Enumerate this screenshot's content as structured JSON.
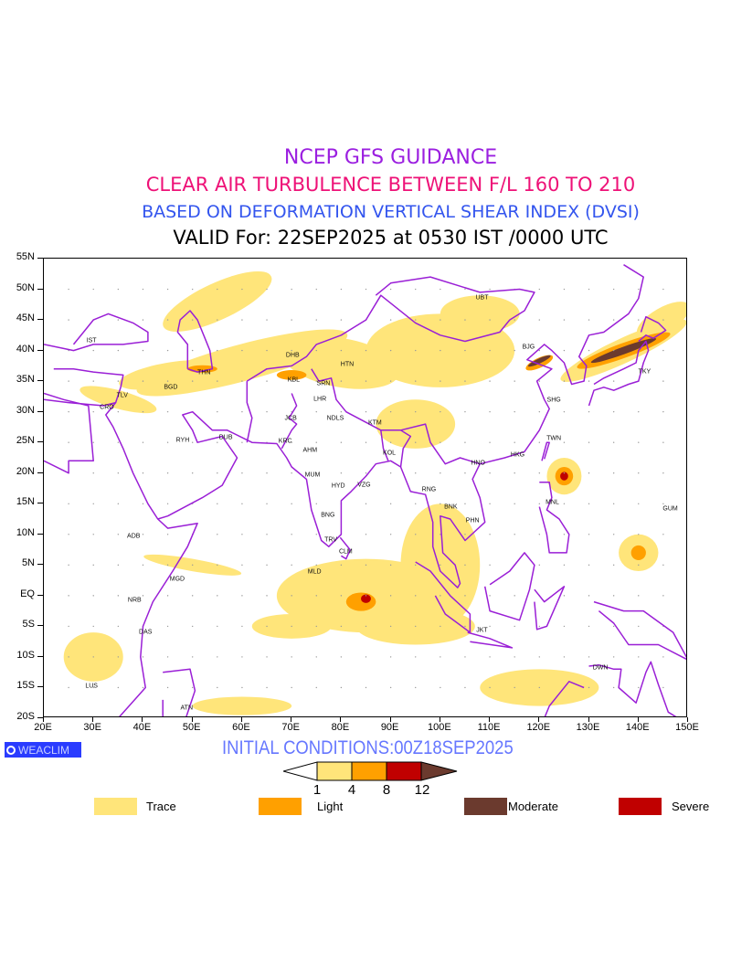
{
  "titles": {
    "line1": "NCEP GFS GUIDANCE",
    "line2": "CLEAR AIR TURBULENCE BETWEEN F/L 160 TO 210",
    "line3": "BASED ON DEFORMATION VERTICAL SHEAR INDEX (DVSI)",
    "line4": "VALID For: 22SEP2025 at 0530 IST /0000 UTC"
  },
  "colors": {
    "line1": "#9b1fe0",
    "line2": "#ee1177",
    "line3": "#3355ee",
    "coast": "#9a1fd6",
    "trace": "#ffe57a",
    "light": "#ffa000",
    "severe": "#c00000",
    "moderate": "#6b3a2e"
  },
  "axes": {
    "lat_labels": [
      "55N",
      "50N",
      "45N",
      "40N",
      "35N",
      "30N",
      "25N",
      "20N",
      "15N",
      "10N",
      "5N",
      "EQ",
      "5S",
      "10S",
      "15S",
      "20S"
    ],
    "lon_labels": [
      "20E",
      "30E",
      "40E",
      "50E",
      "60E",
      "70E",
      "80E",
      "90E",
      "100E",
      "110E",
      "120E",
      "130E",
      "140E",
      "150E"
    ],
    "lon_range": [
      20,
      150
    ],
    "lat_range": [
      -20,
      55
    ]
  },
  "cities": [
    {
      "name": "IST",
      "lon": 29.8,
      "lat": 41.4
    },
    {
      "name": "THN",
      "lon": 52.5,
      "lat": 36.2
    },
    {
      "name": "BGD",
      "lon": 45.8,
      "lat": 33.8
    },
    {
      "name": "TLV",
      "lon": 36,
      "lat": 32.5
    },
    {
      "name": "CRO",
      "lon": 32.9,
      "lat": 30.6
    },
    {
      "name": "RYH",
      "lon": 48.2,
      "lat": 25.2
    },
    {
      "name": "DUB",
      "lon": 56.9,
      "lat": 25.6
    },
    {
      "name": "DHB",
      "lon": 70.4,
      "lat": 39
    },
    {
      "name": "KBL",
      "lon": 70.6,
      "lat": 35
    },
    {
      "name": "SRN",
      "lon": 76.6,
      "lat": 34.4
    },
    {
      "name": "LHR",
      "lon": 75.9,
      "lat": 31.9
    },
    {
      "name": "HTN",
      "lon": 81.4,
      "lat": 37.6
    },
    {
      "name": "JCB",
      "lon": 70,
      "lat": 28.8
    },
    {
      "name": "NDLS",
      "lon": 79,
      "lat": 28.8
    },
    {
      "name": "KTM",
      "lon": 87,
      "lat": 28
    },
    {
      "name": "KRC",
      "lon": 68.9,
      "lat": 25
    },
    {
      "name": "AHM",
      "lon": 73.9,
      "lat": 23.6
    },
    {
      "name": "KOL",
      "lon": 89.9,
      "lat": 23.1
    },
    {
      "name": "MUM",
      "lon": 74.4,
      "lat": 19.5
    },
    {
      "name": "HYD",
      "lon": 79.6,
      "lat": 17.7
    },
    {
      "name": "VZG",
      "lon": 84.8,
      "lat": 17.9
    },
    {
      "name": "BNG",
      "lon": 77.5,
      "lat": 13
    },
    {
      "name": "TRV",
      "lon": 78.1,
      "lat": 9
    },
    {
      "name": "CLM",
      "lon": 81.1,
      "lat": 7
    },
    {
      "name": "MLD",
      "lon": 74.8,
      "lat": 3.7
    },
    {
      "name": "UBT",
      "lon": 108.6,
      "lat": 48.4
    },
    {
      "name": "BJG",
      "lon": 118,
      "lat": 40.4
    },
    {
      "name": "TKY",
      "lon": 141.4,
      "lat": 36.4
    },
    {
      "name": "SHG",
      "lon": 123.1,
      "lat": 31.8
    },
    {
      "name": "TWN",
      "lon": 123.1,
      "lat": 25.5
    },
    {
      "name": "HKG",
      "lon": 115.8,
      "lat": 22.8
    },
    {
      "name": "HNO",
      "lon": 107.8,
      "lat": 21.5
    },
    {
      "name": "RNG",
      "lon": 97.9,
      "lat": 17.1
    },
    {
      "name": "BNK",
      "lon": 102.3,
      "lat": 14.3
    },
    {
      "name": "PHN",
      "lon": 106.7,
      "lat": 12.1
    },
    {
      "name": "MNL",
      "lon": 122.8,
      "lat": 15
    },
    {
      "name": "GUM",
      "lon": 146.6,
      "lat": 14
    },
    {
      "name": "ADB",
      "lon": 38.3,
      "lat": 9.5
    },
    {
      "name": "MGD",
      "lon": 47.1,
      "lat": 2.5
    },
    {
      "name": "NRB",
      "lon": 38.5,
      "lat": -0.9
    },
    {
      "name": "DAS",
      "lon": 40.7,
      "lat": -6.1
    },
    {
      "name": "LUS",
      "lon": 29.8,
      "lat": -14.9
    },
    {
      "name": "ATN",
      "lon": 49,
      "lat": -18.5
    },
    {
      "name": "JKT",
      "lon": 108.6,
      "lat": -5.8
    },
    {
      "name": "DWN",
      "lon": 132.5,
      "lat": -11.9
    }
  ],
  "footer": {
    "logo": "WEACLIM",
    "initial_conditions": "INITIAL CONDITIONS:00Z18SEP2025"
  },
  "colorbar": {
    "levels": [
      "1",
      "4",
      "8",
      "12"
    ]
  },
  "legend": [
    {
      "label": "Trace",
      "color": "#ffe57a"
    },
    {
      "label": "Light",
      "color": "#ffa000"
    },
    {
      "label": "Moderate",
      "color": "#6b3a2e"
    },
    {
      "label": "Severe",
      "color": "#c00000"
    }
  ]
}
